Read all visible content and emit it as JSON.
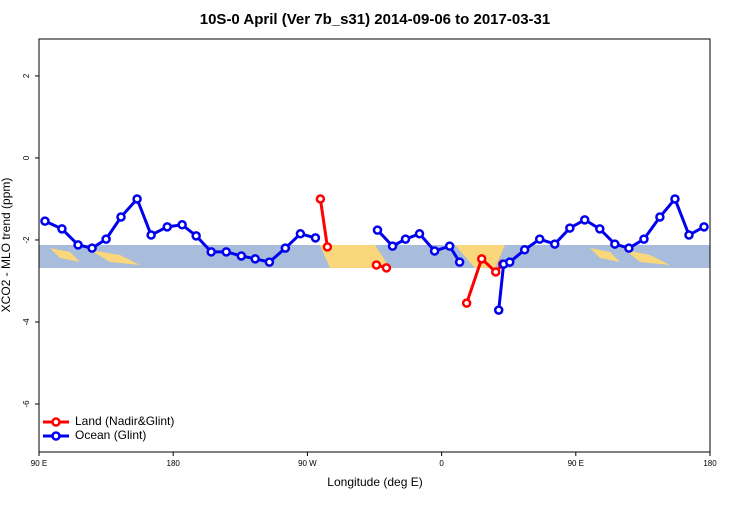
{
  "chart_data": {
    "type": "line",
    "title": "10S-0 April (Ver 7b_s31)   2014-09-06 to 2017-03-31",
    "x_label": "Longitude (deg E)",
    "y_label": "XCO2 - MLO trend (ppm)",
    "xlim": [
      90,
      540
    ],
    "xticks": [
      {
        "value": 90,
        "label": "90 E"
      },
      {
        "value": 180,
        "label": "180"
      },
      {
        "value": 270,
        "label": "90 W"
      },
      {
        "value": 360,
        "label": "0"
      },
      {
        "value": 450,
        "label": "90 E"
      },
      {
        "value": 540,
        "label": "180"
      }
    ],
    "ylim": [
      -7.17,
      2.9
    ],
    "yticks": [
      -6,
      -4,
      -2,
      0,
      2
    ],
    "legend": "bottom-left",
    "series": [
      {
        "name": "Land (Nadir&Glint)",
        "color": "#ff0000",
        "x": [
          278.7,
          283.4,
          null,
          316.3,
          323,
          null,
          376.8,
          386.9,
          396.3,
          401
        ],
        "values": [
          -1.0,
          -2.17,
          null,
          -2.61,
          -2.68,
          null,
          -3.54,
          -2.46,
          -2.78,
          -2.59
        ]
      },
      {
        "name": "Ocean (Glint)",
        "color": "#0000ee",
        "x": [
          94,
          105.4,
          116.2,
          125.6,
          135,
          145,
          155.8,
          165.2,
          176,
          186,
          195.4,
          205.5,
          215.6,
          225.7,
          235,
          244.5,
          255.2,
          265.3,
          275.4,
          null,
          317,
          327.1,
          335.8,
          345.2,
          355.3,
          365.4,
          372.1,
          null,
          398.3,
          401.6,
          405.7,
          415.7,
          425.8,
          435.9,
          446,
          456,
          466.1,
          476.2,
          485.6,
          495.7,
          506.4,
          516.5,
          525.9,
          536
        ],
        "values": [
          -1.54,
          -1.73,
          -2.12,
          -2.2,
          -1.98,
          -1.44,
          -1.0,
          -1.88,
          -1.68,
          -1.63,
          -1.9,
          -2.29,
          -2.29,
          -2.39,
          -2.46,
          -2.54,
          -2.2,
          -1.85,
          -1.95,
          null,
          -1.76,
          -2.15,
          -1.98,
          -1.85,
          -2.27,
          -2.15,
          -2.54,
          null,
          -3.71,
          -2.59,
          -2.54,
          -2.24,
          -1.98,
          -2.1,
          -1.71,
          -1.51,
          -1.73,
          -2.1,
          -2.2,
          -1.98,
          -1.44,
          -1.0,
          -1.88,
          -1.68
        ]
      }
    ]
  }
}
